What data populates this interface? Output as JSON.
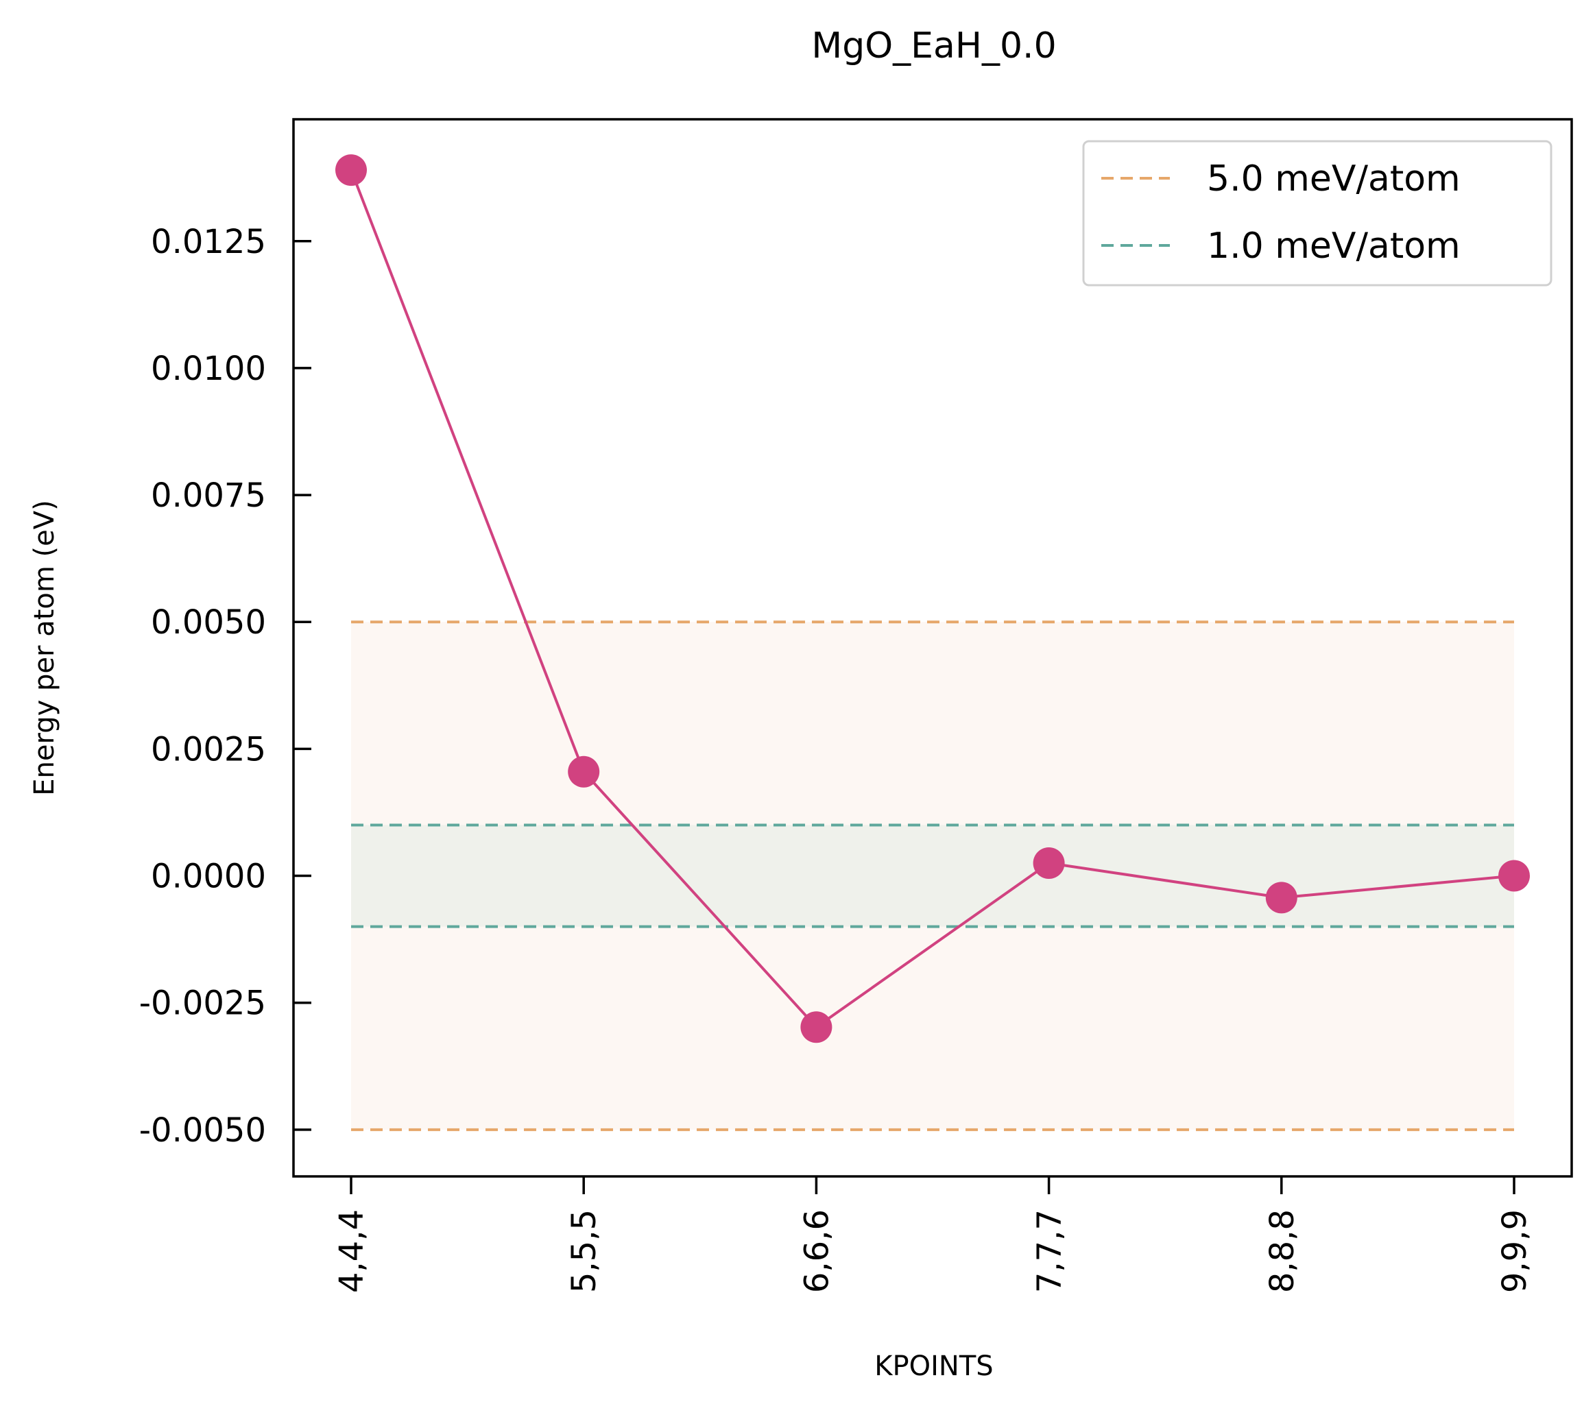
{
  "chart_data": {
    "type": "line",
    "title": "MgO_EaH_0.0",
    "xlabel": "KPOINTS",
    "ylabel": "Energy per atom (eV)",
    "categories": [
      "4,4,4",
      "5,5,5",
      "6,6,6",
      "7,7,7",
      "8,8,8",
      "9,9,9"
    ],
    "series": [
      {
        "values": [
          0.0139,
          0.00205,
          -0.00298,
          0.00025,
          -0.00043,
          0.0
        ],
        "color": "#d14280"
      }
    ],
    "thresholds": [
      {
        "name": "5.0 meV/atom",
        "value": 0.005,
        "color": "#e6a76a",
        "fill": "#fdf7f2"
      },
      {
        "name": "1.0 meV/atom",
        "value": 0.001,
        "color": "#5fa89c",
        "fill": "#eef0ea"
      }
    ],
    "yticks": [
      "0.0125",
      "0.0100",
      "0.0075",
      "0.0050",
      "0.0025",
      "0.0000",
      "-0.0025",
      "-0.0050"
    ],
    "ylim": [
      -0.00592,
      0.0149
    ],
    "grid": false,
    "legend_position": "top-right"
  }
}
